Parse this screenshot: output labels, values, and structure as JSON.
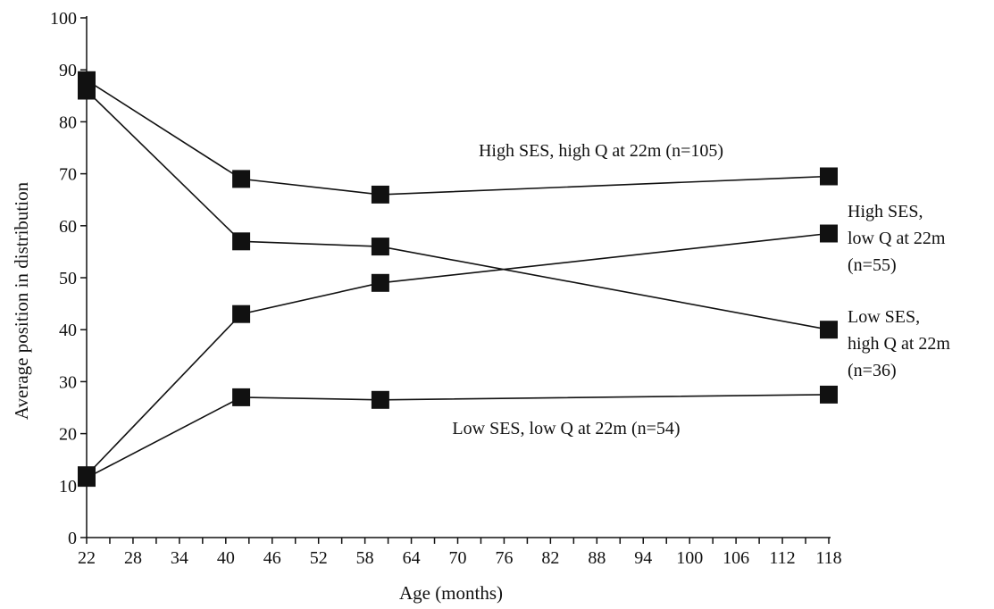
{
  "chart_data": {
    "type": "line",
    "xlabel": "Age (months)",
    "ylabel": "Average position in distribution",
    "xlim": [
      22,
      118
    ],
    "ylim": [
      0,
      100
    ],
    "x_ticks": [
      22,
      28,
      34,
      40,
      46,
      52,
      58,
      64,
      70,
      76,
      82,
      88,
      94,
      100,
      106,
      112,
      118
    ],
    "y_ticks": [
      0,
      10,
      20,
      30,
      40,
      50,
      60,
      70,
      80,
      90,
      100
    ],
    "grid": false,
    "marker": "square",
    "color": "#111111",
    "series": [
      {
        "name": "High SES, high Q at 22m (n=105)",
        "x": [
          22,
          42,
          60,
          118
        ],
        "y": [
          88,
          69,
          66,
          69.5
        ]
      },
      {
        "name": "High SES, low Q at 22m (n=55)",
        "x": [
          22,
          42,
          60,
          118
        ],
        "y": [
          12,
          43,
          49,
          58.5
        ]
      },
      {
        "name": "Low SES, high Q at 22m (n=36)",
        "x": [
          22,
          42,
          60,
          118
        ],
        "y": [
          86,
          57,
          56,
          40
        ]
      },
      {
        "name": "Low SES, low Q at 22m (n=54)",
        "x": [
          22,
          42,
          60,
          118
        ],
        "y": [
          11.5,
          27,
          26.5,
          27.5
        ]
      }
    ],
    "annotations": [
      {
        "series": 0,
        "lines": [
          "High SES, high Q at 22m (n=105)"
        ]
      },
      {
        "series": 1,
        "lines": [
          "High SES,",
          "low Q at 22m",
          "(n=55)"
        ]
      },
      {
        "series": 2,
        "lines": [
          "Low SES,",
          "high Q at 22m",
          "(n=36)"
        ]
      },
      {
        "series": 3,
        "lines": [
          "Low SES, low Q at 22m (n=54)"
        ]
      }
    ]
  }
}
